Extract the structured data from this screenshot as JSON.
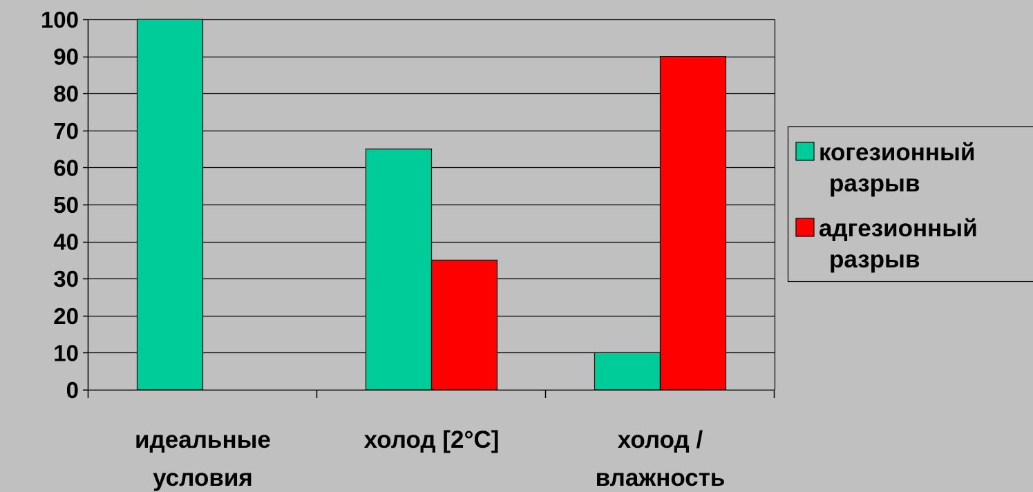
{
  "chart_data": {
    "type": "bar",
    "categories": [
      [
        "идеальные",
        "условия"
      ],
      [
        "холод [2°C]"
      ],
      [
        "холод /",
        "влажность"
      ]
    ],
    "series": [
      {
        "name": [
          "когезионный",
          "разрыв"
        ],
        "color": "#00cc99",
        "values": [
          100,
          65,
          10
        ]
      },
      {
        "name": [
          "адгезионный",
          "разрыв"
        ],
        "color": "#ff0000",
        "values": [
          0,
          35,
          90
        ]
      }
    ],
    "ylim": [
      0,
      100
    ],
    "yticks": [
      "0",
      "10",
      "20",
      "30",
      "40",
      "50",
      "60",
      "70",
      "80",
      "90",
      "100"
    ],
    "grid": true,
    "legend": "right",
    "background": "#c0c0c0"
  }
}
